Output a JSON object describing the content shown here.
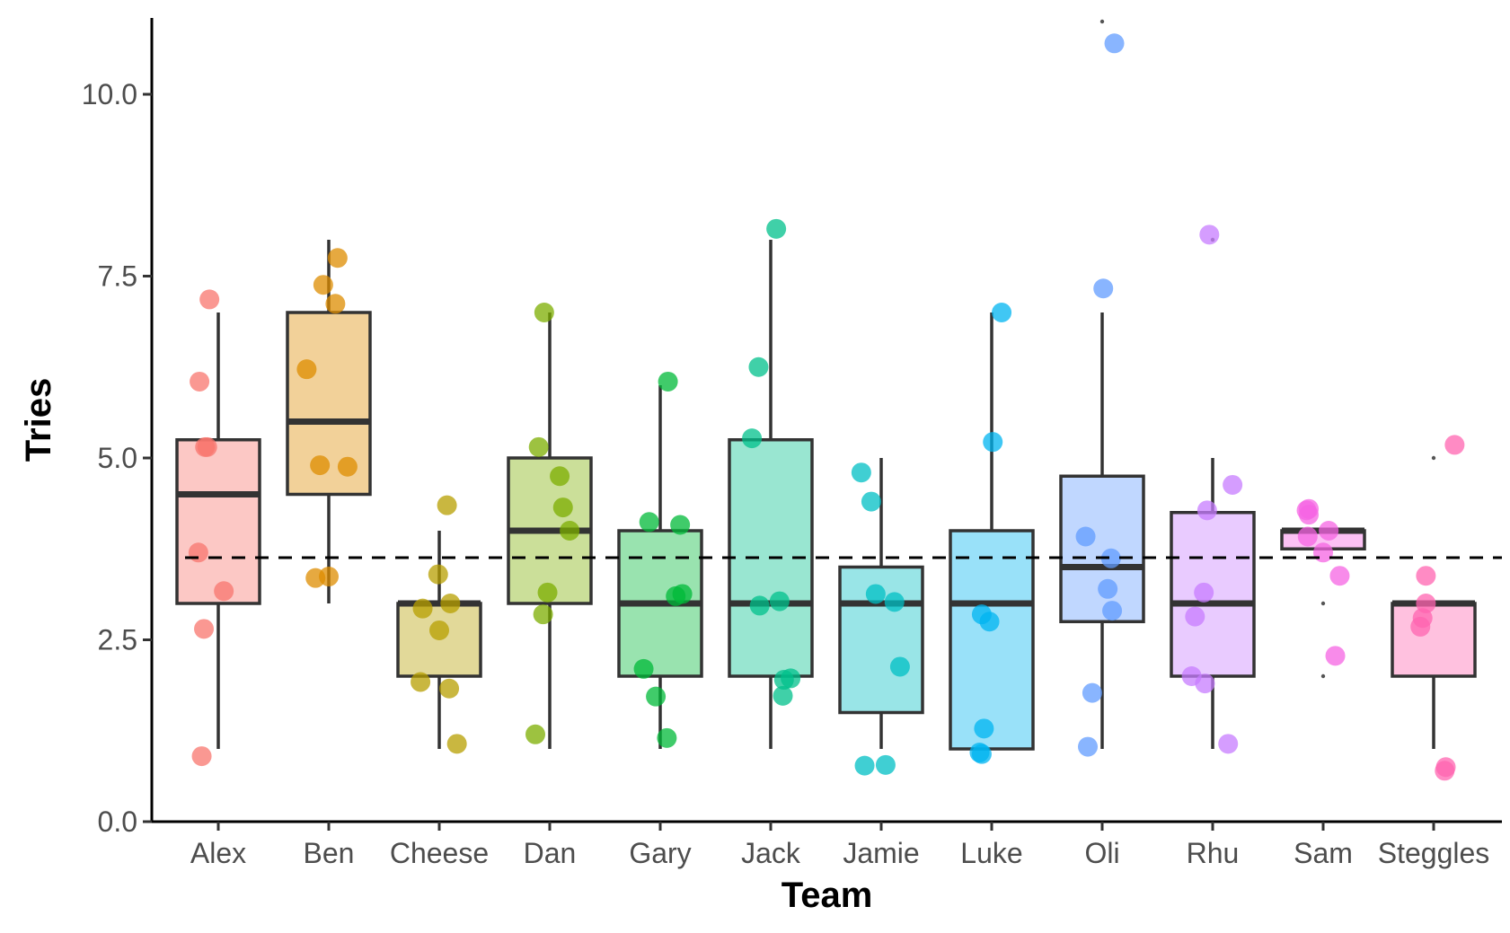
{
  "chart_data": {
    "type": "boxplot",
    "xlabel": "Team",
    "ylabel": "Tries",
    "ylim": [
      0,
      11
    ],
    "yticks": [
      0,
      2.5,
      5,
      7.5,
      10
    ],
    "ytick_labels": [
      "0.0",
      "2.5",
      "5.0",
      "7.5",
      "10.0"
    ],
    "reference_line": {
      "y": 3.63,
      "style": "dashed",
      "color": "#000000"
    },
    "grid": false,
    "legend": "none",
    "categories": [
      "Alex",
      "Ben",
      "Cheese",
      "Dan",
      "Gary",
      "Jack",
      "Jamie",
      "Luke",
      "Oli",
      "Rhu",
      "Sam",
      "Steggles"
    ],
    "groups": [
      {
        "name": "Alex",
        "color": "#F8766D",
        "q1": 3,
        "median": 4.5,
        "q3": 5.25,
        "whisker_low": 1,
        "whisker_high": 7,
        "outliers": [],
        "points": [
          [
            -0.15,
            0.9
          ],
          [
            -0.08,
            7.18
          ],
          [
            -0.17,
            6.05
          ],
          [
            -0.12,
            5.15
          ],
          [
            -0.1,
            5.15
          ],
          [
            -0.18,
            3.7
          ],
          [
            0.05,
            3.17
          ],
          [
            -0.13,
            2.65
          ]
        ]
      },
      {
        "name": "Ben",
        "color": "#DE8C00",
        "q1": 4.5,
        "median": 5.5,
        "q3": 7,
        "whisker_low": 3,
        "whisker_high": 8,
        "outliers": [],
        "points": [
          [
            0.08,
            7.75
          ],
          [
            -0.05,
            7.38
          ],
          [
            0.06,
            7.12
          ],
          [
            -0.2,
            6.22
          ],
          [
            -0.08,
            4.9
          ],
          [
            0.17,
            4.88
          ],
          [
            -0.12,
            3.35
          ],
          [
            0.0,
            3.37
          ]
        ]
      },
      {
        "name": "Cheese",
        "color": "#B79F00",
        "q1": 2,
        "median": 3,
        "q3": 3,
        "whisker_low": 1,
        "whisker_high": 4,
        "outliers": [],
        "points": [
          [
            0.07,
            4.35
          ],
          [
            -0.01,
            3.4
          ],
          [
            -0.15,
            2.93
          ],
          [
            0.1,
            3.0
          ],
          [
            0.0,
            2.63
          ],
          [
            -0.17,
            1.92
          ],
          [
            0.09,
            1.83
          ],
          [
            0.16,
            1.07
          ]
        ]
      },
      {
        "name": "Dan",
        "color": "#7CAE00",
        "q1": 3,
        "median": 4,
        "q3": 5,
        "whisker_low": 1,
        "whisker_high": 7,
        "outliers": [],
        "points": [
          [
            -0.05,
            7.0
          ],
          [
            -0.1,
            5.15
          ],
          [
            0.09,
            4.75
          ],
          [
            0.12,
            4.32
          ],
          [
            0.18,
            4.0
          ],
          [
            -0.02,
            3.15
          ],
          [
            -0.06,
            2.85
          ],
          [
            -0.13,
            1.2
          ]
        ]
      },
      {
        "name": "Gary",
        "color": "#00BA38",
        "q1": 2,
        "median": 3,
        "q3": 4,
        "whisker_low": 1,
        "whisker_high": 6,
        "outliers": [],
        "points": [
          [
            0.07,
            6.05
          ],
          [
            -0.1,
            4.12
          ],
          [
            0.18,
            4.08
          ],
          [
            0.14,
            3.1
          ],
          [
            0.2,
            3.13
          ],
          [
            -0.15,
            2.1
          ],
          [
            -0.04,
            1.72
          ],
          [
            0.06,
            1.15
          ]
        ]
      },
      {
        "name": "Jack",
        "color": "#00C08B",
        "q1": 2,
        "median": 3,
        "q3": 5.25,
        "whisker_low": 1,
        "whisker_high": 8,
        "outliers": [],
        "points": [
          [
            0.05,
            8.15
          ],
          [
            -0.11,
            6.25
          ],
          [
            -0.17,
            5.27
          ],
          [
            -0.1,
            2.97
          ],
          [
            0.08,
            3.03
          ],
          [
            0.18,
            1.97
          ],
          [
            0.12,
            1.95
          ],
          [
            0.11,
            1.73
          ]
        ]
      },
      {
        "name": "Jamie",
        "color": "#00BFC4",
        "q1": 1.5,
        "median": 3,
        "q3": 3.5,
        "whisker_low": 1,
        "whisker_high": 5,
        "outliers": [],
        "points": [
          [
            -0.18,
            4.8
          ],
          [
            -0.09,
            4.4
          ],
          [
            -0.05,
            3.13
          ],
          [
            0.12,
            3.02
          ],
          [
            0.17,
            2.13
          ],
          [
            -0.15,
            0.77
          ],
          [
            0.04,
            0.78
          ]
        ]
      },
      {
        "name": "Luke",
        "color": "#00B4F0",
        "q1": 1,
        "median": 3,
        "q3": 4,
        "whisker_low": 1,
        "whisker_high": 7,
        "outliers": [],
        "points": [
          [
            0.09,
            7.0
          ],
          [
            0.01,
            5.22
          ],
          [
            -0.09,
            2.85
          ],
          [
            -0.02,
            2.75
          ],
          [
            -0.07,
            1.28
          ],
          [
            -0.09,
            0.93
          ],
          [
            -0.11,
            0.95
          ]
        ]
      },
      {
        "name": "Oli",
        "color": "#619CFF",
        "q1": 2.75,
        "median": 3.5,
        "q3": 4.75,
        "whisker_low": 1,
        "whisker_high": 7,
        "outliers": [
          11
        ],
        "points": [
          [
            0.11,
            10.7
          ],
          [
            0.01,
            7.33
          ],
          [
            -0.15,
            3.92
          ],
          [
            0.08,
            3.62
          ],
          [
            0.05,
            3.2
          ],
          [
            0.09,
            2.9
          ],
          [
            -0.09,
            1.77
          ],
          [
            -0.13,
            1.03
          ]
        ]
      },
      {
        "name": "Rhu",
        "color": "#C77CFF",
        "q1": 2,
        "median": 3,
        "q3": 4.25,
        "whisker_low": 1,
        "whisker_high": 5,
        "outliers": [
          8
        ],
        "points": [
          [
            -0.03,
            8.07
          ],
          [
            0.18,
            4.63
          ],
          [
            -0.05,
            4.28
          ],
          [
            -0.08,
            3.15
          ],
          [
            -0.16,
            2.82
          ],
          [
            -0.19,
            2.0
          ],
          [
            -0.07,
            1.9
          ],
          [
            0.14,
            1.07
          ]
        ]
      },
      {
        "name": "Sam",
        "color": "#F564E3",
        "q1": 3.75,
        "median": 4,
        "q3": 4,
        "whisker_low": 3.75,
        "whisker_high": 4,
        "outliers": [
          3,
          2
        ],
        "points": [
          [
            -0.13,
            4.3
          ],
          [
            -0.15,
            4.28
          ],
          [
            -0.13,
            4.22
          ],
          [
            0.05,
            4.0
          ],
          [
            -0.14,
            3.92
          ],
          [
            0.0,
            3.7
          ],
          [
            0.15,
            3.38
          ],
          [
            0.11,
            2.28
          ]
        ]
      },
      {
        "name": "Steggles",
        "color": "#FF64B0",
        "q1": 2,
        "median": 3,
        "q3": 3,
        "whisker_low": 1,
        "whisker_high": 3,
        "outliers": [
          5
        ],
        "points": [
          [
            0.19,
            5.18
          ],
          [
            -0.07,
            3.38
          ],
          [
            -0.07,
            3.0
          ],
          [
            -0.1,
            2.8
          ],
          [
            -0.12,
            2.68
          ],
          [
            0.11,
            0.75
          ],
          [
            0.1,
            0.7
          ]
        ]
      }
    ]
  }
}
